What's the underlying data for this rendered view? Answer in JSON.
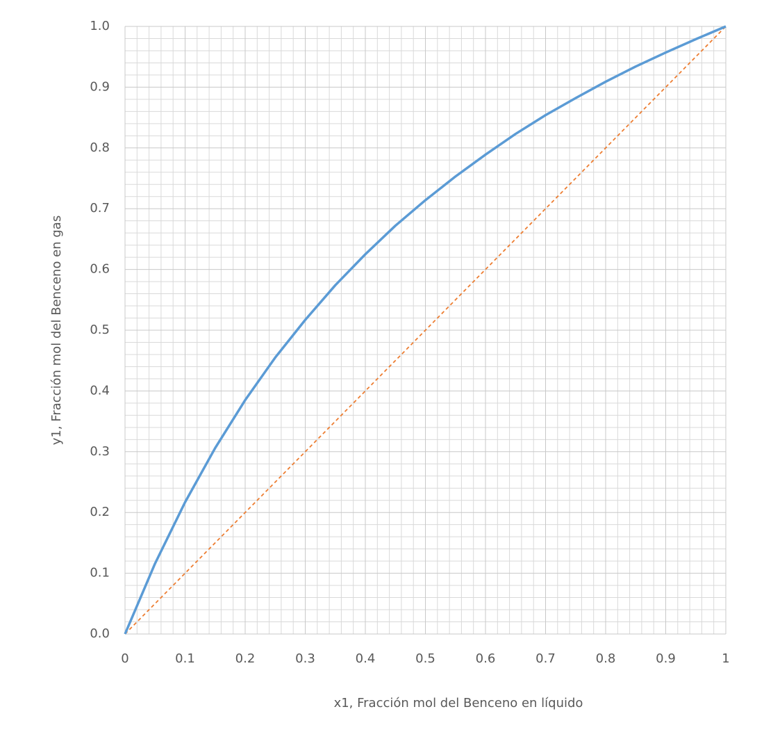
{
  "chart_data": {
    "type": "line",
    "xlabel": "x1, Fracción mol del Benceno en líquido",
    "ylabel": "y1, Fracción mol del Benceno en gas",
    "xlim": [
      0,
      1
    ],
    "ylim": [
      0,
      1
    ],
    "xticks": [
      0,
      0.1,
      0.2,
      0.3,
      0.4,
      0.5,
      0.6,
      0.7,
      0.8,
      0.9,
      1
    ],
    "yticks": [
      {
        "value": 0,
        "label": "0.0"
      },
      0.1,
      0.2,
      0.3,
      0.4,
      0.5,
      0.6,
      0.7,
      0.8,
      0.9,
      {
        "value": 1,
        "label": "1.0"
      }
    ],
    "grid": true,
    "series": [
      {
        "color": "#5b9bd5",
        "line_style": "solid",
        "x": [
          0,
          0.05,
          0.1,
          0.15,
          0.2,
          0.25,
          0.3,
          0.35,
          0.4,
          0.45,
          0.5,
          0.55,
          0.6,
          0.65,
          0.7,
          0.75,
          0.8,
          0.85,
          0.9,
          0.95,
          1
        ],
        "values": [
          0,
          0.116,
          0.217,
          0.306,
          0.385,
          0.455,
          0.517,
          0.574,
          0.625,
          0.672,
          0.714,
          0.753,
          0.789,
          0.823,
          0.854,
          0.882,
          0.909,
          0.934,
          0.957,
          0.979,
          1
        ]
      },
      {
        "color": "#ed7d31",
        "line_style": "dashed",
        "x": [
          0,
          1
        ],
        "values": [
          0,
          1
        ]
      }
    ]
  }
}
